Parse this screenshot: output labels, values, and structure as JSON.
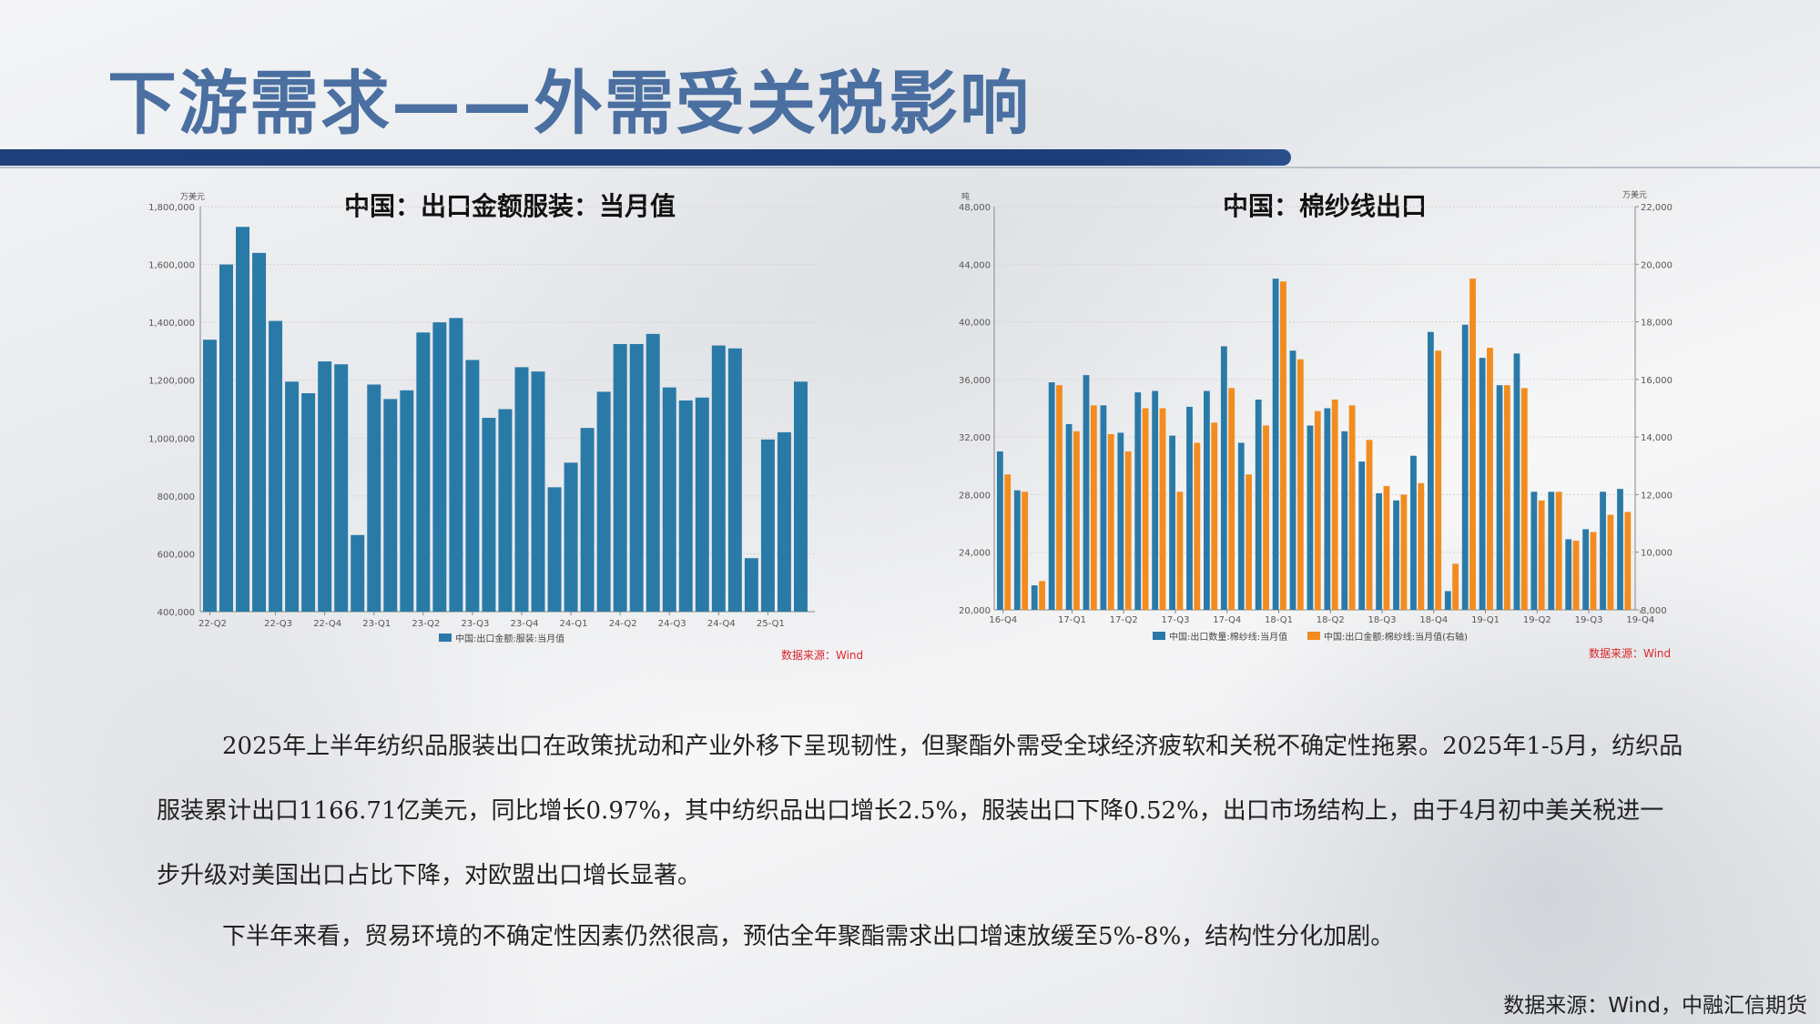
{
  "slide": {
    "title": "下游需求——外需受关税影响",
    "paragraph1": "2025年上半年纺织品服装出口在政策扰动和产业外移下呈现韧性，但聚酯外需受全球经济疲软和关税不确定性拖累。2025年1-5月，纺织品服装累计出口1166.71亿美元，同比增长0.97%，其中纺织品出口增长2.5%，服装出口下降0.52%，出口市场结构上，由于4月初中美关税进一步升级对美国出口占比下降，对欧盟出口增长显著。",
    "paragraph2": "下半年来看，贸易环境的不确定性因素仍然很高，预估全年聚酯需求出口增速放缓至5%-8%，结构性分化加剧。",
    "footer": "数据来源：Wind，中融汇信期货"
  },
  "chart_data": [
    {
      "type": "bar",
      "title": "中国：出口金额服装：当月值",
      "ylabel": "万美元",
      "ylim": [
        400000,
        1800000
      ],
      "yticks": [
        "1,800,000",
        "1,600,000",
        "1,400,000",
        "1,200,000",
        "1,000,000",
        "800,000",
        "600,000",
        "400,000"
      ],
      "ytick_values": [
        1800000,
        1600000,
        1400000,
        1200000,
        1000000,
        800000,
        600000,
        400000
      ],
      "xticks": [
        "22-Q2",
        "22-Q3",
        "22-Q4",
        "23-Q1",
        "23-Q2",
        "23-Q3",
        "23-Q4",
        "24-Q1",
        "24-Q2",
        "24-Q3",
        "24-Q4",
        "25-Q1"
      ],
      "xtick_index": [
        0,
        4,
        7,
        10,
        13,
        16,
        19,
        22,
        25,
        28,
        31,
        34
      ],
      "series": [
        {
          "name": "中国:出口金额:服装:当月值",
          "color": "#2a7aa8",
          "values": [
            1340000,
            1600000,
            1730000,
            1640000,
            1405000,
            1195000,
            1155000,
            1265000,
            1255000,
            665000,
            1185000,
            1135000,
            1165000,
            1365000,
            1400000,
            1415000,
            1270000,
            1070000,
            1100000,
            1245000,
            1230000,
            830000,
            915000,
            1035000,
            1160000,
            1325000,
            1325000,
            1360000,
            1175000,
            1130000,
            1140000,
            1320000,
            1310000,
            585000,
            995000,
            1020000,
            1195000
          ]
        }
      ],
      "source": "数据来源：Wind"
    },
    {
      "type": "bar",
      "title": "中国：棉纱线出口",
      "ylabel": "吨",
      "y2label": "万美元",
      "ylim": [
        20000,
        48000
      ],
      "y2lim": [
        8000,
        22000
      ],
      "yticks": [
        "48,000",
        "44,000",
        "40,000",
        "36,000",
        "32,000",
        "28,000",
        "24,000",
        "20,000"
      ],
      "ytick_values": [
        48000,
        44000,
        40000,
        36000,
        32000,
        28000,
        24000,
        20000
      ],
      "y2ticks": [
        "22,000",
        "20,000",
        "18,000",
        "16,000",
        "14,000",
        "12,000",
        "10,000",
        "8,000"
      ],
      "y2tick_values": [
        22000,
        20000,
        18000,
        16000,
        14000,
        12000,
        10000,
        8000
      ],
      "xticks": [
        "16-Q4",
        "17-Q1",
        "17-Q2",
        "17-Q3",
        "17-Q4",
        "18-Q1",
        "18-Q2",
        "18-Q3",
        "18-Q4",
        "19-Q1",
        "19-Q2",
        "19-Q3",
        "19-Q4"
      ],
      "xtick_index": [
        0,
        4,
        7,
        10,
        13,
        16,
        19,
        22,
        25,
        28,
        31,
        34,
        37
      ],
      "series": [
        {
          "name": "中国:出口数量:棉纱线:当月值",
          "color": "#2a7aa8",
          "axis": "left",
          "values": [
            31000,
            28300,
            21700,
            35800,
            32900,
            36300,
            34200,
            32300,
            35100,
            35200,
            32100,
            34100,
            35200,
            38300,
            31600,
            34600,
            43000,
            38000,
            32800,
            34000,
            32400,
            30300,
            28100,
            27600,
            30700,
            39300,
            21300,
            39800,
            37500,
            35600,
            37800,
            28200,
            28200,
            24900,
            25600,
            28200,
            28400
          ]
        },
        {
          "name": "中国:出口金额:棉纱线:当月值(右轴)",
          "color": "#f28c1e",
          "axis": "right",
          "values": [
            12700,
            12100,
            9000,
            15800,
            14200,
            15100,
            14100,
            13500,
            15000,
            15000,
            12100,
            13800,
            14500,
            15700,
            12700,
            14400,
            19400,
            16700,
            14900,
            15300,
            15100,
            13900,
            12300,
            12000,
            12400,
            17000,
            9600,
            19500,
            17100,
            15800,
            15700,
            11800,
            12100,
            10400,
            10700,
            11300,
            11400
          ]
        }
      ],
      "source": "数据来源：Wind"
    }
  ]
}
